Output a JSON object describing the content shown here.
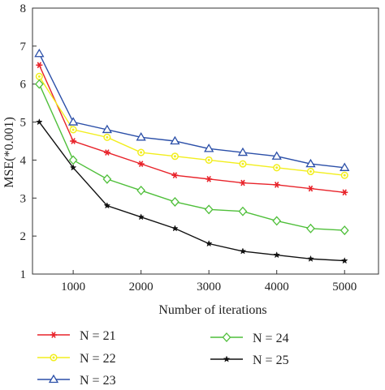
{
  "chart_data": {
    "type": "line",
    "title": "",
    "xlabel": "Number of iterations",
    "ylabel": "MSE(*0.001)",
    "xlim": [
      400,
      5500
    ],
    "ylim": [
      1,
      8
    ],
    "xticks": [
      1000,
      2000,
      3000,
      4000,
      5000
    ],
    "xtick_labels": [
      "1000",
      "2000",
      "3000",
      "4000",
      "5000"
    ],
    "yticks": [
      1,
      2,
      3,
      4,
      5,
      6,
      7,
      8
    ],
    "ytick_labels": [
      "1",
      "2",
      "3",
      "4",
      "5",
      "6",
      "7",
      "8"
    ],
    "grid": false,
    "legend_position": "bottom",
    "x": [
      500,
      1000,
      1500,
      2000,
      2500,
      3000,
      3500,
      4000,
      4500,
      5000
    ],
    "series": [
      {
        "name": "N = 21",
        "color": "#e8232a",
        "marker": "asterisk",
        "values": [
          6.5,
          4.5,
          4.2,
          3.9,
          3.6,
          3.5,
          3.4,
          3.35,
          3.25,
          3.15
        ]
      },
      {
        "name": "N = 22",
        "color": "#f2ee1d",
        "marker": "circle-star",
        "values": [
          6.2,
          4.8,
          4.6,
          4.2,
          4.1,
          4.0,
          3.9,
          3.8,
          3.7,
          3.6
        ]
      },
      {
        "name": "N = 23",
        "color": "#2b4fa8",
        "marker": "triangle",
        "values": [
          6.8,
          5.0,
          4.8,
          4.6,
          4.5,
          4.3,
          4.2,
          4.1,
          3.9,
          3.8
        ]
      },
      {
        "name": "N = 24",
        "color": "#4fbf3a",
        "marker": "diamond",
        "values": [
          6.0,
          4.0,
          3.5,
          3.2,
          2.9,
          2.7,
          2.65,
          2.4,
          2.2,
          2.15
        ]
      },
      {
        "name": "N = 25",
        "color": "#111111",
        "marker": "star",
        "values": [
          5.0,
          3.8,
          2.8,
          2.5,
          2.2,
          1.8,
          1.6,
          1.5,
          1.4,
          1.35
        ]
      }
    ]
  }
}
